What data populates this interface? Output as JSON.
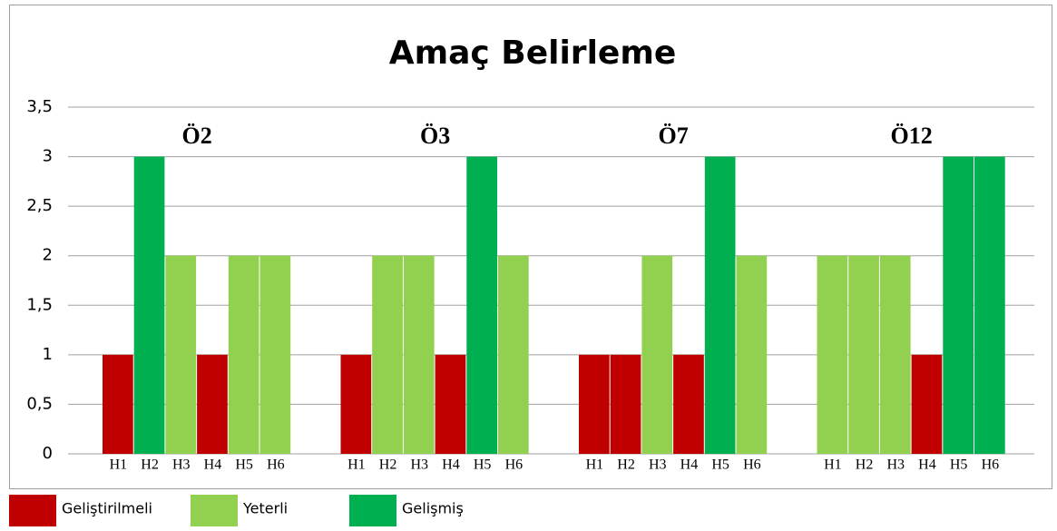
{
  "chart_data": {
    "type": "bar",
    "title": "Amaç Belirleme",
    "ylim": [
      0,
      3.5
    ],
    "yticks": [
      0,
      {
        "value": 0.5,
        "label": "0,5"
      },
      1,
      {
        "value": 1.5,
        "label": "1,5"
      },
      2,
      {
        "value": 2.5,
        "label": "2,5"
      },
      3,
      {
        "value": 3.5,
        "label": "3,5"
      }
    ],
    "grid": true,
    "legend": [
      {
        "name": "Geliştirilmeli",
        "color": "#c00000"
      },
      {
        "name": "Yeterli",
        "color": "#92d050"
      },
      {
        "name": "Gelişmiş",
        "color": "#00b050"
      }
    ],
    "groups": [
      {
        "name": "Ö2",
        "categories": [
          "H1",
          "H2",
          "H3",
          "H4",
          "H5",
          "H6"
        ],
        "values": [
          1,
          3,
          2,
          1,
          2,
          2
        ],
        "colors": [
          "#c00000",
          "#00b050",
          "#92d050",
          "#c00000",
          "#92d050",
          "#92d050"
        ]
      },
      {
        "name": "Ö3",
        "categories": [
          "H1",
          "H2",
          "H3",
          "H4",
          "H5",
          "H6"
        ],
        "values": [
          1,
          2,
          2,
          1,
          3,
          2
        ],
        "colors": [
          "#c00000",
          "#92d050",
          "#92d050",
          "#c00000",
          "#00b050",
          "#92d050"
        ]
      },
      {
        "name": "Ö7",
        "categories": [
          "H1",
          "H2",
          "H3",
          "H4",
          "H5",
          "H6"
        ],
        "values": [
          1,
          1,
          2,
          1,
          3,
          2
        ],
        "colors": [
          "#c00000",
          "#c00000",
          "#92d050",
          "#c00000",
          "#00b050",
          "#92d050"
        ]
      },
      {
        "name": "Ö12",
        "categories": [
          "H1",
          "H2",
          "H3",
          "H4",
          "H5",
          "H6"
        ],
        "values": [
          2,
          2,
          2,
          1,
          3,
          3
        ],
        "colors": [
          "#92d050",
          "#92d050",
          "#92d050",
          "#c00000",
          "#00b050",
          "#00b050"
        ]
      }
    ]
  }
}
